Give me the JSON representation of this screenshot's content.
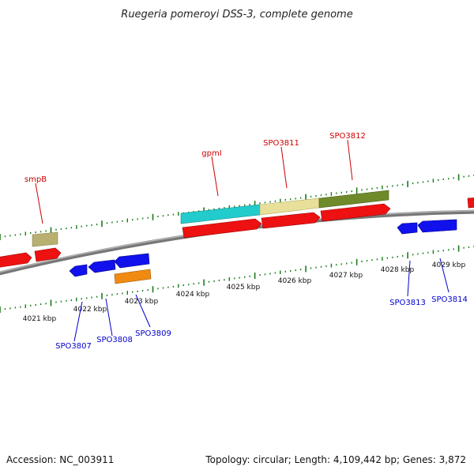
{
  "title": "Ruegeria pomeroyi DSS-3, complete genome",
  "footer": {
    "accession": "Accession: NC_003911",
    "summary": "Topology: circular; Length: 4,109,442 bp; Genes: 3,872"
  },
  "colors": {
    "backbone": "#8a8a8a",
    "forward_cds": "#ee1111",
    "reverse_cds": "#1111ee",
    "tick": "#1a7a1a",
    "label_forward": "#cc0000",
    "label_reverse": "#0000cc",
    "feature_cyan": "#22cccc",
    "feature_khaki": "#e8e09a",
    "feature_olive": "#6e8a2a",
    "feature_tan": "#b8b070",
    "feature_orange": "#f08a10"
  },
  "scale_labels": [
    "4021 kbp",
    "4022 kbp",
    "4023 kbp",
    "4024 kbp",
    "4025 kbp",
    "4026 kbp",
    "4027 kbp",
    "4028 kbp",
    "4029 kbp"
  ],
  "forward_gene_labels": [
    "smpB",
    "gpmI",
    "SPO3811",
    "SPO3812"
  ],
  "reverse_gene_labels": [
    "SPO3807",
    "SPO3808",
    "SPO3809",
    "SPO3813",
    "SPO3814"
  ]
}
